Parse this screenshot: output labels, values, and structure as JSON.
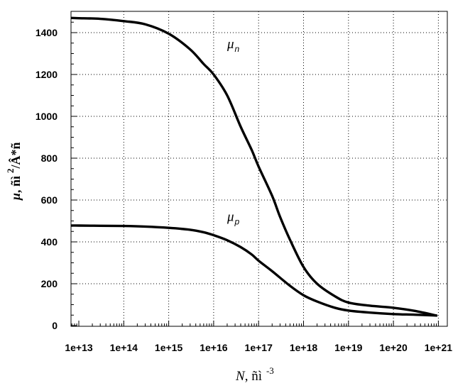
{
  "chart_data": {
    "type": "line",
    "xlabel": {
      "var": "N",
      "unit": ", ñì",
      "exp": "-3"
    },
    "ylabel": {
      "var": "μ",
      "unit": ", ñì",
      "exp": "2",
      "rest": "/Â*ñ"
    },
    "x_scale": "log",
    "xlim": [
      10000000000000.0,
      1e+21
    ],
    "ylim": [
      0,
      1500
    ],
    "grid": true,
    "x_ticks": [
      {
        "value": 10000000000000.0,
        "label": "1e+13"
      },
      {
        "value": 100000000000000.0,
        "label": "1e+14"
      },
      {
        "value": 1000000000000000.0,
        "label": "1e+15"
      },
      {
        "value": 1e+16,
        "label": "1e+16"
      },
      {
        "value": 1e+17,
        "label": "1e+17"
      },
      {
        "value": 1e+18,
        "label": "1e+18"
      },
      {
        "value": 1e+19,
        "label": "1e+19"
      },
      {
        "value": 1e+20,
        "label": "1e+20"
      },
      {
        "value": 1e+21,
        "label": "1e+21"
      }
    ],
    "y_ticks": [
      {
        "value": 0,
        "label": "0"
      },
      {
        "value": 200,
        "label": "200"
      },
      {
        "value": 400,
        "label": "400"
      },
      {
        "value": 600,
        "label": "600"
      },
      {
        "value": 800,
        "label": "800"
      },
      {
        "value": 1000,
        "label": "1000"
      },
      {
        "value": 1200,
        "label": "1200"
      },
      {
        "value": 1400,
        "label": "1400"
      }
    ],
    "series": [
      {
        "name": "μ",
        "sub": "n",
        "label_at": {
          "x": 2e+16,
          "y": 1325
        },
        "x": [
          7000000000000.0,
          10000000000000.0,
          30000000000000.0,
          100000000000000.0,
          300000000000000.0,
          1000000000000000.0,
          3000000000000000.0,
          6000000000000000.0,
          1e+16,
          2e+16,
          4e+16,
          7e+16,
          1e+17,
          2e+17,
          3e+17,
          5e+17,
          1e+18,
          2e+18,
          5e+18,
          1e+19,
          3e+19,
          1e+20,
          3e+20,
          9e+20
        ],
        "y": [
          1470,
          1469,
          1466,
          1455,
          1440,
          1395,
          1320,
          1250,
          1200,
          1100,
          950,
          840,
          760,
          620,
          520,
          410,
          280,
          200,
          140,
          110,
          95,
          85,
          70,
          48
        ]
      },
      {
        "name": "μ",
        "sub": "p",
        "label_at": {
          "x": 2e+16,
          "y": 500
        },
        "x": [
          7000000000000.0,
          10000000000000.0,
          30000000000000.0,
          100000000000000.0,
          300000000000000.0,
          1000000000000000.0,
          3000000000000000.0,
          6000000000000000.0,
          1e+16,
          2e+16,
          4e+16,
          7e+16,
          1e+17,
          2e+17,
          5e+17,
          1e+18,
          2e+18,
          5e+18,
          1e+19,
          3e+19,
          1e+20,
          3e+20,
          9e+20
        ],
        "y": [
          478,
          478,
          477,
          476,
          473,
          467,
          458,
          446,
          432,
          408,
          375,
          340,
          310,
          260,
          190,
          145,
          115,
          85,
          72,
          62,
          55,
          52,
          48
        ]
      }
    ]
  }
}
